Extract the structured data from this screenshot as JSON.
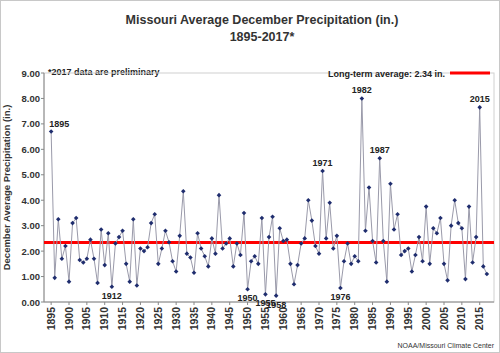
{
  "chart_data": {
    "type": "line",
    "title": "Missouri Average December Precipitation (in.)",
    "subtitle": "1895-2017*",
    "note": "*2017 data are preliminary",
    "source": "NOAA/Missouri Climate Center",
    "y_label": "December Average Precipitation (in.)",
    "x": [
      1895,
      1896,
      1897,
      1898,
      1899,
      1900,
      1901,
      1902,
      1903,
      1904,
      1905,
      1906,
      1907,
      1908,
      1909,
      1910,
      1911,
      1912,
      1913,
      1914,
      1915,
      1916,
      1917,
      1918,
      1919,
      1920,
      1921,
      1922,
      1923,
      1924,
      1925,
      1926,
      1927,
      1928,
      1929,
      1930,
      1931,
      1932,
      1933,
      1934,
      1935,
      1936,
      1937,
      1938,
      1939,
      1940,
      1941,
      1942,
      1943,
      1944,
      1945,
      1946,
      1947,
      1948,
      1949,
      1950,
      1951,
      1952,
      1953,
      1954,
      1955,
      1956,
      1957,
      1958,
      1959,
      1960,
      1961,
      1962,
      1963,
      1964,
      1965,
      1966,
      1967,
      1968,
      1969,
      1970,
      1971,
      1972,
      1973,
      1974,
      1975,
      1976,
      1977,
      1978,
      1979,
      1980,
      1981,
      1982,
      1983,
      1984,
      1985,
      1986,
      1987,
      1988,
      1989,
      1990,
      1991,
      1992,
      1993,
      1994,
      1995,
      1996,
      1997,
      1998,
      1999,
      2000,
      2001,
      2002,
      2003,
      2004,
      2005,
      2006,
      2007,
      2008,
      2009,
      2010,
      2011,
      2012,
      2013,
      2014,
      2015,
      2016,
      2017
    ],
    "series": [
      {
        "name": "December Average Precipitation",
        "color": "#1f2d6e",
        "marker": "diamond",
        "line_style": "solid",
        "values": [
          6.7,
          0.95,
          3.25,
          1.7,
          2.2,
          0.8,
          3.1,
          3.3,
          1.65,
          1.55,
          1.7,
          2.45,
          1.7,
          0.75,
          2.85,
          1.45,
          2.7,
          0.6,
          2.3,
          2.55,
          2.8,
          1.5,
          0.8,
          3.25,
          0.65,
          2.1,
          2.0,
          2.15,
          3.1,
          3.45,
          1.5,
          2.1,
          2.8,
          2.35,
          1.6,
          1.2,
          2.6,
          4.35,
          1.9,
          1.75,
          1.15,
          2.7,
          2.1,
          1.8,
          1.4,
          2.5,
          1.9,
          4.2,
          2.1,
          2.3,
          2.5,
          1.4,
          2.3,
          1.85,
          3.5,
          0.5,
          1.6,
          1.8,
          1.5,
          3.3,
          0.3,
          2.55,
          3.35,
          0.25,
          2.9,
          2.4,
          2.45,
          1.5,
          0.7,
          1.45,
          2.3,
          2.5,
          4.0,
          3.2,
          2.2,
          1.9,
          5.15,
          2.5,
          3.9,
          2.1,
          2.6,
          0.55,
          1.6,
          2.3,
          1.5,
          1.8,
          1.6,
          8.0,
          2.8,
          4.5,
          2.4,
          1.55,
          5.65,
          2.4,
          0.8,
          4.65,
          2.85,
          3.45,
          1.85,
          2.0,
          2.1,
          1.2,
          1.85,
          2.55,
          1.6,
          3.75,
          1.5,
          2.9,
          2.7,
          3.3,
          1.5,
          0.85,
          3.0,
          4.0,
          3.1,
          2.9,
          0.9,
          3.75,
          1.55,
          2.55,
          7.65,
          1.4,
          1.1
        ]
      }
    ],
    "reference_line": {
      "value": 2.34,
      "label": "Long-term average: 2.34 in.",
      "color": "#ff0000"
    },
    "annotations": [
      {
        "text": "1895",
        "x": 1895
      },
      {
        "text": "1912",
        "x": 1912
      },
      {
        "text": "1950",
        "x": 1950
      },
      {
        "text": "1955",
        "x": 1955
      },
      {
        "text": "1958",
        "x": 1958
      },
      {
        "text": "1971",
        "x": 1971
      },
      {
        "text": "1976",
        "x": 1976
      },
      {
        "text": "1982",
        "x": 1982
      },
      {
        "text": "1987",
        "x": 1987
      },
      {
        "text": "2015",
        "x": 2015
      }
    ],
    "xlim": [
      1893,
      2019
    ],
    "xticks": [
      1895,
      1900,
      1905,
      1910,
      1915,
      1920,
      1925,
      1930,
      1935,
      1940,
      1945,
      1950,
      1955,
      1960,
      1965,
      1970,
      1975,
      1980,
      1985,
      1990,
      1995,
      2000,
      2005,
      2010,
      2015
    ],
    "ylim": [
      0,
      9
    ],
    "yticks": [
      {
        "value": 0,
        "label": "0.00"
      },
      {
        "value": 1,
        "label": "1.00"
      },
      {
        "value": 2,
        "label": "2.00"
      },
      {
        "value": 3,
        "label": "3.00"
      },
      {
        "value": 4,
        "label": "4.00"
      },
      {
        "value": 5,
        "label": "5.00"
      },
      {
        "value": 6,
        "label": "6.00"
      },
      {
        "value": 7,
        "label": "7.00"
      },
      {
        "value": 8,
        "label": "8.00"
      },
      {
        "value": 9,
        "label": "9.00"
      }
    ],
    "grid": false,
    "legend": "top-right"
  }
}
